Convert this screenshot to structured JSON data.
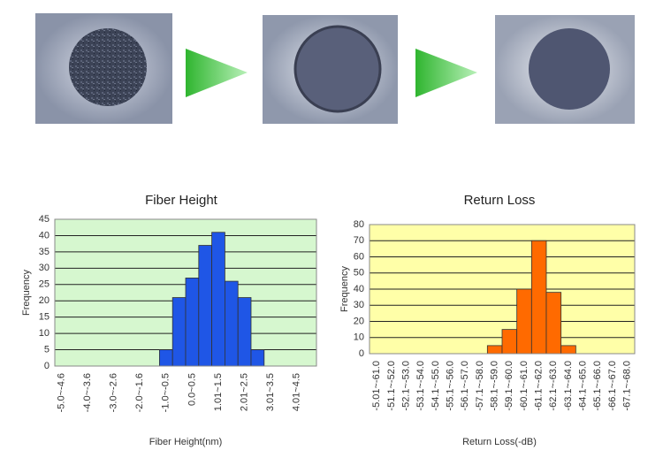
{
  "chart_data": [
    {
      "type": "bar",
      "title": "Fiber Height",
      "x_label": "Fiber Height(nm)",
      "y_label": "Frequency",
      "categories": [
        "-5.0~-4.6",
        null,
        "-4.0~-3.6",
        null,
        "-3.0~-2.6",
        null,
        "-2.0~-1.6",
        null,
        "-1.0~-0.5",
        null,
        "0.0~0.5",
        null,
        "1.01~1.5",
        null,
        "2.01~2.5",
        null,
        "3.01~3.5",
        null,
        "4.01~4.5",
        null
      ],
      "values": [
        0,
        0,
        0,
        0,
        0,
        0,
        0,
        0,
        5,
        21,
        27,
        37,
        41,
        26,
        21,
        5,
        0,
        0,
        0,
        0
      ],
      "color": "#1f56e6",
      "plot_background": "#d6f7cf",
      "ylim": [
        0,
        45
      ],
      "yticks": [
        0,
        5,
        10,
        15,
        20,
        25,
        30,
        35,
        40,
        45
      ],
      "grid": true
    },
    {
      "type": "bar",
      "title": "Return Loss",
      "x_label": "Return Loss(-dB)",
      "y_label": "Frequency",
      "categories": [
        "-5.01~-61.0",
        "-51.1~-52.0",
        "-52.1~-53.0",
        "-53.1~-54.0",
        "-54.1~-55.0",
        "-55.1~-56.0",
        "-56.1~-57.0",
        "-57.1~-58.0",
        "-58.1~-59.0",
        "-59.1~-60.0",
        "-60.1~-61.0",
        "-61.1~-62.0",
        "-62.1~-63.0",
        "-63.1~-64.0",
        "-64.1~-65.0",
        "-65.1~-66.0",
        "-66.1~-67.0",
        "-67.1~-68.0"
      ],
      "values": [
        0,
        0,
        0,
        0,
        0,
        0,
        0,
        0,
        5,
        15,
        40,
        70,
        38,
        5,
        0,
        0,
        0,
        0
      ],
      "color": "#ff6a00",
      "plot_background": "#ffffa8",
      "ylim": [
        0,
        80
      ],
      "yticks": [
        0,
        10,
        20,
        30,
        40,
        50,
        60,
        70,
        80
      ],
      "grid": true
    }
  ]
}
